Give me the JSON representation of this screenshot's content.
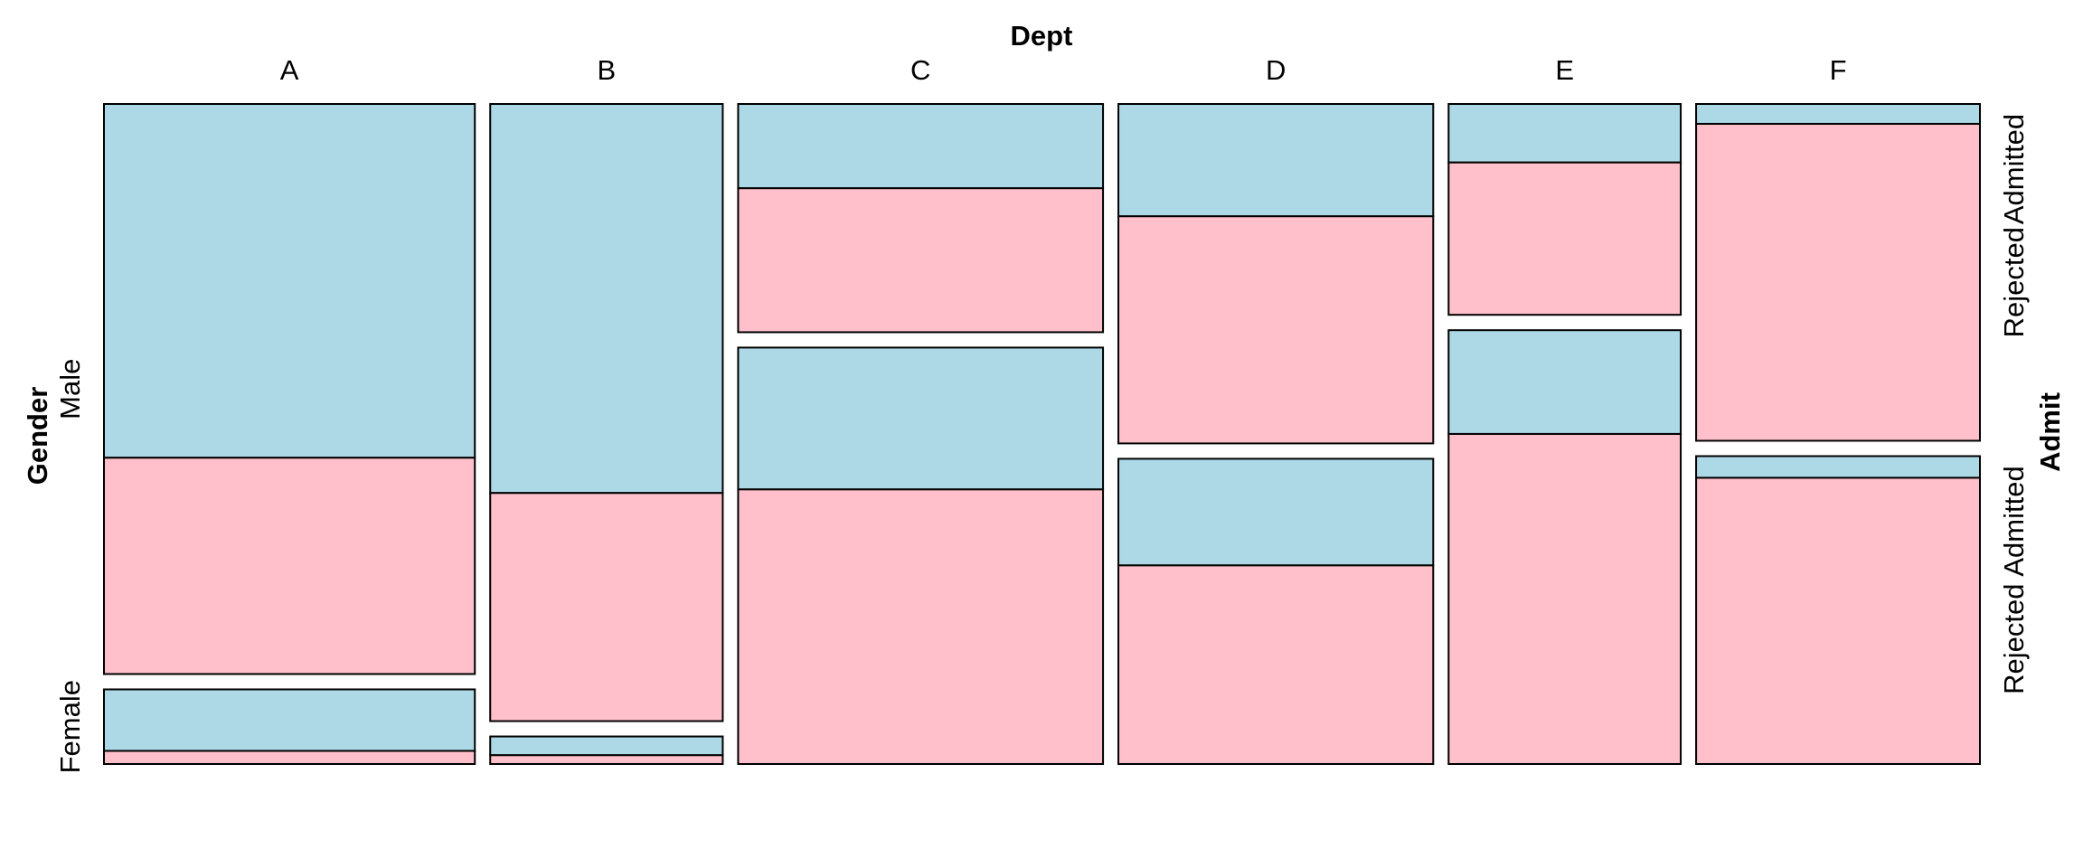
{
  "chart_data": {
    "type": "mosaic",
    "title": "",
    "x_variable": "Dept",
    "y_variable": "Gender",
    "fill_variable": "Admit",
    "categories": [
      "A",
      "B",
      "C",
      "D",
      "E",
      "F"
    ],
    "genders": [
      "Male",
      "Female"
    ],
    "admit_levels": [
      "Admitted",
      "Rejected"
    ],
    "colors": {
      "Admitted": "#add8e6",
      "Rejected": "#ffc0cb"
    },
    "counts": {
      "A": {
        "Male": {
          "Admitted": 512,
          "Rejected": 313
        },
        "Female": {
          "Admitted": 89,
          "Rejected": 19
        }
      },
      "B": {
        "Male": {
          "Admitted": 353,
          "Rejected": 207
        },
        "Female": {
          "Admitted": 17,
          "Rejected": 8
        }
      },
      "C": {
        "Male": {
          "Admitted": 120,
          "Rejected": 205
        },
        "Female": {
          "Admitted": 202,
          "Rejected": 391
        }
      },
      "D": {
        "Male": {
          "Admitted": 138,
          "Rejected": 279
        },
        "Female": {
          "Admitted": 131,
          "Rejected": 244
        }
      },
      "E": {
        "Male": {
          "Admitted": 53,
          "Rejected": 138
        },
        "Female": {
          "Admitted": 94,
          "Rejected": 299
        }
      },
      "F": {
        "Male": {
          "Admitted": 22,
          "Rejected": 351
        },
        "Female": {
          "Admitted": 24,
          "Rejected": 317
        }
      }
    },
    "right_axis_labels": [
      "Admitted",
      "Rejected",
      "Admitted",
      "Rejected"
    ],
    "legend": "none",
    "grid": false
  }
}
